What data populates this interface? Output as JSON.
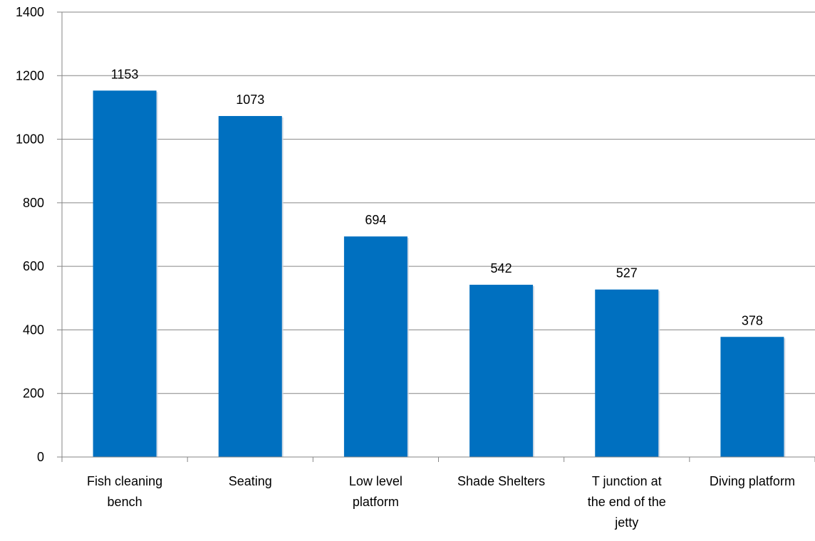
{
  "chart_data": {
    "type": "bar",
    "categories": [
      [
        "Fish cleaning",
        "bench"
      ],
      [
        "Seating"
      ],
      [
        "Low level",
        "platform"
      ],
      [
        "Shade Shelters"
      ],
      [
        "T junction at",
        "the end of the",
        "jetty"
      ],
      [
        "Diving platform"
      ]
    ],
    "values": [
      1153,
      1073,
      694,
      542,
      527,
      378
    ],
    "data_labels": [
      "1153",
      "1073",
      "694",
      "542",
      "527",
      "378"
    ],
    "ylim": [
      0,
      1400
    ],
    "yticks": [
      0,
      200,
      400,
      600,
      800,
      1000,
      1200,
      1400
    ],
    "ytick_labels": [
      "0",
      "200",
      "400",
      "600",
      "800",
      "1000",
      "1200",
      "1400"
    ],
    "grid": true,
    "legend": "none",
    "title": "",
    "xlabel": "",
    "ylabel": "",
    "colors": {
      "bar": "#0070C0",
      "grid": "#868686",
      "axis": "#868686"
    }
  }
}
